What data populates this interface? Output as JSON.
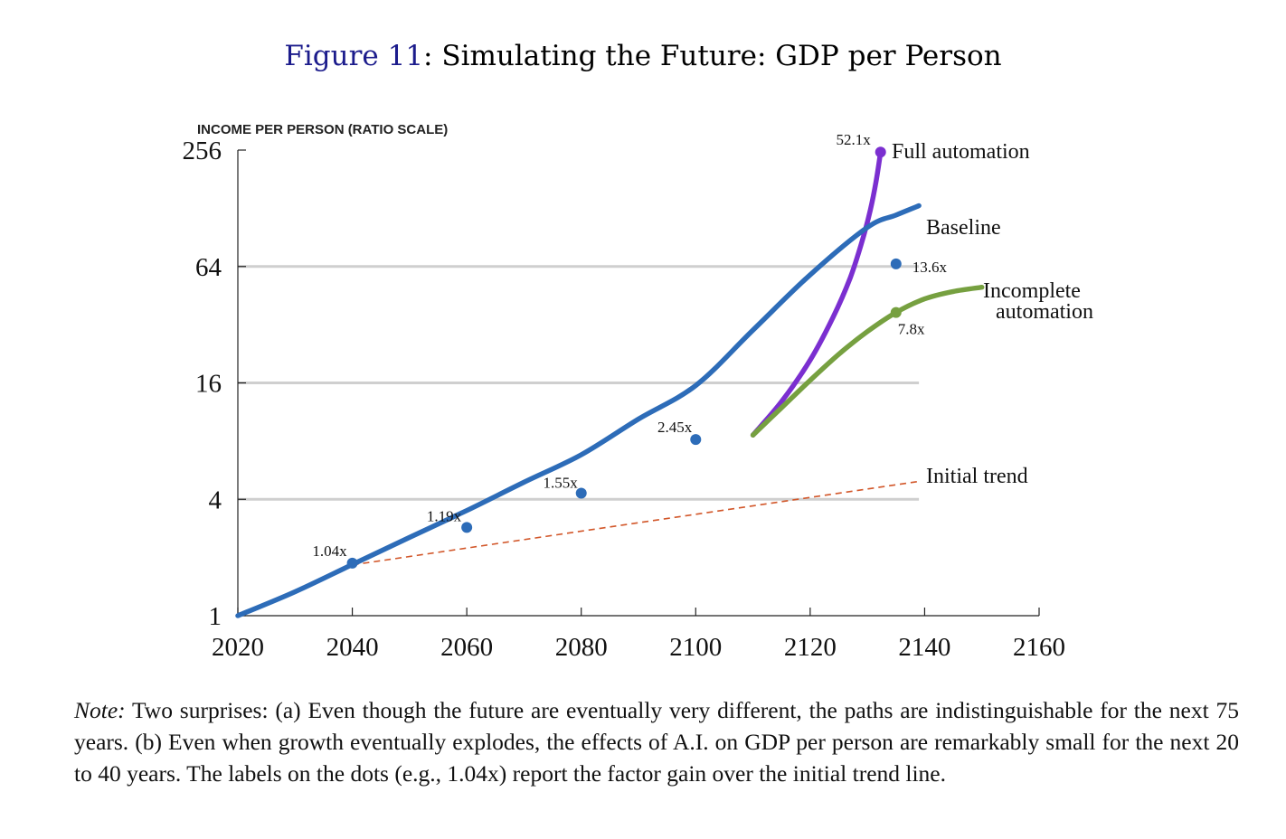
{
  "figure": {
    "ref": "Figure 11",
    "title": ": Simulating the Future: GDP per Person"
  },
  "note": {
    "lead": "Note:",
    "text": " Two surprises: (a) Even though the future are eventually very different, the paths are indistinguishable for the next 75 years. (b) Even when growth eventually explodes, the effects of A.I. on GDP per person are remarkably small for the next 20 to 40 years. The labels on the dots (e.g., 1.04x) report the factor gain over the initial trend line."
  },
  "chart_data": {
    "type": "line",
    "title": "Simulating the Future: GDP per Person",
    "ylabel": "INCOME PER PERSON (RATIO SCALE)",
    "xlabel": "",
    "yscale": "log2",
    "ylim": [
      1,
      256
    ],
    "xlim": [
      2020,
      2160
    ],
    "xticks": [
      2020,
      2040,
      2060,
      2080,
      2100,
      2120,
      2140,
      2160
    ],
    "yticks": [
      1,
      4,
      16,
      64,
      256
    ],
    "ytick_labels": [
      "1",
      "4",
      "16",
      "64",
      "256"
    ],
    "gridlines": [
      4,
      16,
      64
    ],
    "series": [
      {
        "name": "Initial trend",
        "label": "Initial trend",
        "color": "#d2572a",
        "style": "dashed",
        "x": [
          2040,
          2139
        ],
        "y": [
          1.83,
          4.95
        ]
      },
      {
        "name": "Full automation",
        "label": "Full automation",
        "color": "#7b2fd0",
        "style": "solid",
        "x": [
          2110,
          2115,
          2120,
          2124,
          2127,
          2129,
          2130.5,
          2131.5,
          2132.3
        ],
        "y": [
          8.6,
          12.8,
          21,
          35,
          56,
          85,
          125,
          175,
          250
        ]
      },
      {
        "name": "Incomplete automation",
        "label": [
          "Incomplete",
          "automation"
        ],
        "color": "#76a040",
        "style": "solid",
        "x": [
          2110,
          2115,
          2120,
          2125,
          2130,
          2135,
          2140,
          2145,
          2150
        ],
        "y": [
          8.6,
          11.9,
          16.5,
          22.5,
          29.5,
          37,
          43.5,
          47.5,
          50
        ]
      },
      {
        "name": "Baseline",
        "label": "Baseline",
        "color": "#2d6cb8",
        "style": "solid",
        "x": [
          2020,
          2030,
          2040,
          2050,
          2060,
          2070,
          2080,
          2090,
          2100,
          2110,
          2120,
          2130,
          2135,
          2139
        ],
        "y": [
          1,
          1.33,
          1.84,
          2.54,
          3.5,
          4.9,
          6.8,
          10.4,
          15.5,
          30,
          58,
          102,
          118,
          132
        ]
      }
    ],
    "dots": [
      {
        "x": 2040,
        "y": 1.87,
        "label": "1.04x",
        "color": "#2d6cb8"
      },
      {
        "x": 2060,
        "y": 2.86,
        "label": "1.19x",
        "color": "#2d6cb8"
      },
      {
        "x": 2080,
        "y": 4.3,
        "label": "1.55x",
        "color": "#2d6cb8"
      },
      {
        "x": 2100,
        "y": 8.15,
        "label": "2.45x",
        "color": "#2d6cb8"
      },
      {
        "x": 2135,
        "y": 66,
        "label": "13.6x",
        "color": "#2d6cb8"
      },
      {
        "x": 2135,
        "y": 37,
        "label": "7.8x",
        "color": "#76a040"
      },
      {
        "x": 2132.3,
        "y": 250,
        "label": "52.1x",
        "color": "#7b2fd0"
      }
    ]
  }
}
